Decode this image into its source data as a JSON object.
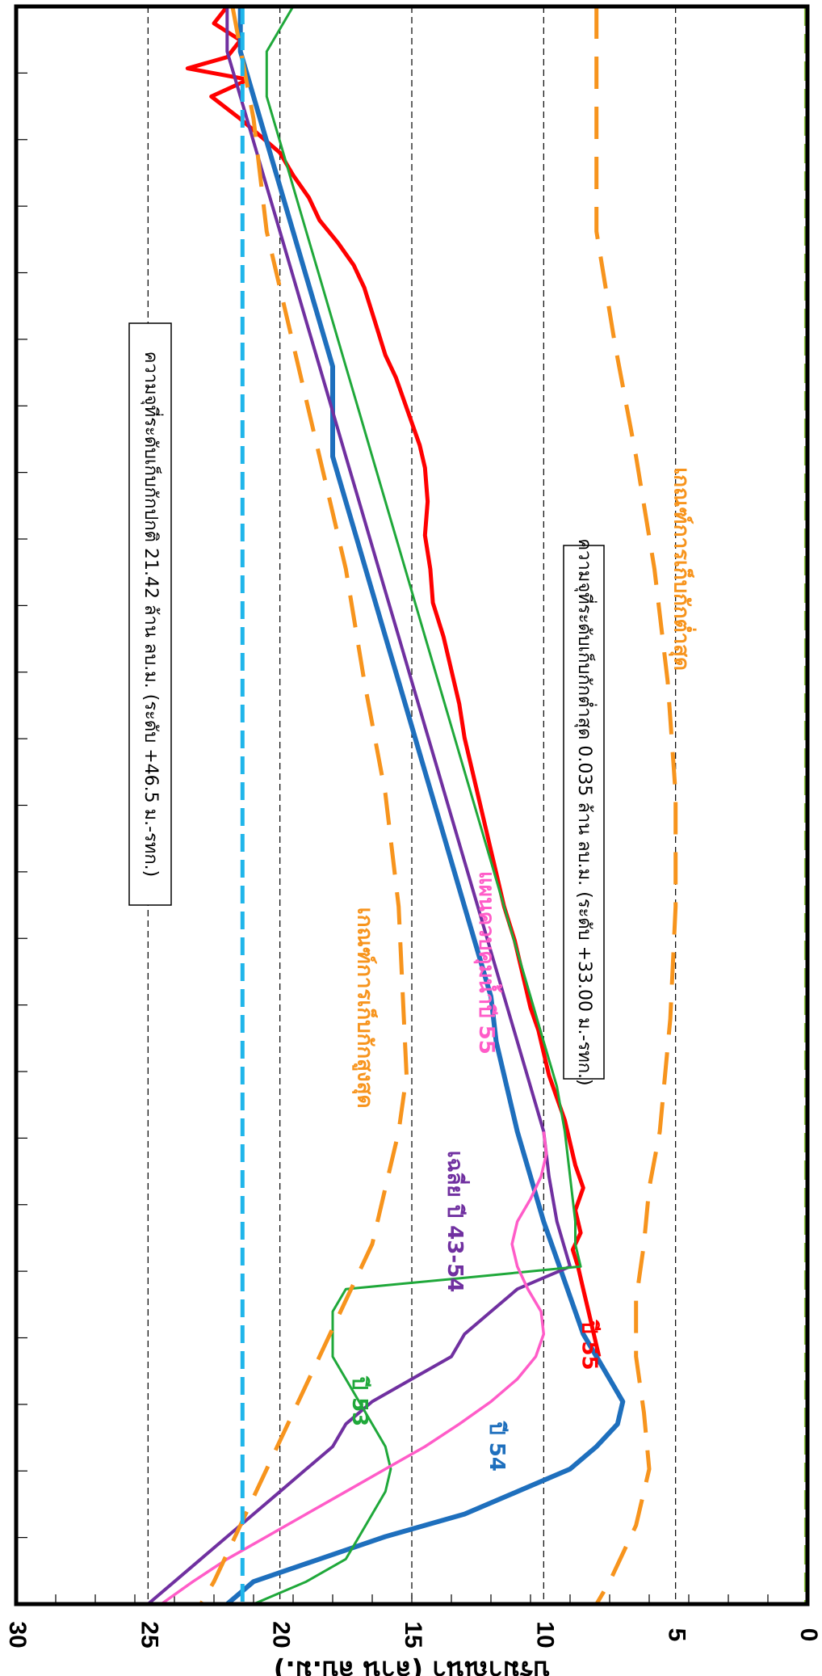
{
  "chart_data": {
    "type": "line",
    "ylabel": "ปริมาณน้ำ (ล้าน ลบ.ม.)",
    "ylim": [
      0,
      30
    ],
    "yticks": [
      0,
      5,
      10,
      15,
      20,
      25,
      30
    ],
    "grid": true,
    "x_ticks_count": 24,
    "normal_storage_label": "ความจุที่ระดับเก็บกักปกติ 21.42 ล้าน ลบ.ม. (ระดับ +46.5 ม.-รทก.)",
    "min_storage_label": "ความจุที่ระดับเก็บกักต่ำสุด 0.035 ล้าน ลบ.ม. (ระดับ +33.00 ม.-รทก.)",
    "series": [
      {
        "name": "ปี 55",
        "color": "#ff0000",
        "width": 5,
        "x": [
          0,
          1.5,
          3,
          4.5,
          5.5,
          6.5,
          8,
          10,
          13,
          15,
          17,
          19,
          21,
          23,
          25,
          28,
          31,
          33,
          35,
          37,
          39,
          41,
          44,
          47,
          50,
          53,
          56,
          59,
          62,
          65,
          68,
          71,
          74,
          77,
          80,
          83,
          86,
          89,
          91,
          93,
          95,
          97,
          99,
          101,
          103,
          105,
          107,
          109,
          110.5,
          112,
          114,
          116,
          118,
          120
        ],
        "values": [
          22,
          22.5,
          21.5,
          22,
          23.5,
          21.2,
          22.6,
          21.5,
          20,
          19.5,
          18.9,
          18.5,
          17.8,
          17.2,
          16.8,
          16.4,
          16,
          15.6,
          15.3,
          15,
          14.7,
          14.5,
          14.4,
          14.5,
          14.3,
          14.2,
          13.8,
          13.5,
          13.2,
          13,
          12.7,
          12.4,
          12.1,
          11.8,
          11.5,
          11.1,
          10.8,
          10.5,
          10.2,
          10,
          9.8,
          9.5,
          9.2,
          9,
          8.8,
          8.5,
          8.8,
          8.6,
          8.9,
          8.7,
          8.5,
          8.3,
          8.1,
          7.9
        ]
      },
      {
        "name": "ปี 54",
        "color": "#1e6fbd",
        "width": 6,
        "x": [
          0,
          4,
          8,
          12,
          16,
          20,
          24,
          28,
          32,
          36,
          40,
          44,
          48,
          52,
          56,
          60,
          64,
          68,
          72,
          76,
          80,
          84,
          88,
          92,
          96,
          100,
          104,
          108,
          112,
          116,
          118,
          120,
          122,
          124,
          126,
          128,
          130,
          132,
          134,
          136,
          138,
          140,
          142
        ],
        "values": [
          21.5,
          21.5,
          21,
          20.5,
          20,
          19.5,
          19,
          18.5,
          18,
          18,
          18,
          17.5,
          17,
          16.5,
          16,
          15.5,
          15,
          14.5,
          14,
          13.5,
          13,
          12.5,
          12,
          11.8,
          11.4,
          11,
          10.5,
          10,
          9.4,
          8.8,
          8.5,
          8,
          7.5,
          7,
          7.2,
          8,
          9,
          11,
          13,
          16,
          18.5,
          21,
          22
        ]
      },
      {
        "name": "เฉลี่ย ปี 43-54",
        "color": "#7030a0",
        "width": 4,
        "x": [
          0,
          4,
          8,
          12,
          16,
          20,
          24,
          28,
          32,
          36,
          40,
          44,
          48,
          52,
          56,
          60,
          64,
          68,
          72,
          76,
          80,
          84,
          88,
          92,
          96,
          100,
          104,
          108,
          112,
          113,
          114,
          116,
          118,
          120,
          122,
          124,
          126,
          128,
          130,
          132,
          134,
          136,
          138,
          140,
          142
        ],
        "values": [
          22,
          22,
          21.5,
          21,
          20.5,
          20,
          19.5,
          19,
          18.5,
          18,
          17.5,
          17,
          16.5,
          16,
          15.5,
          15,
          14.5,
          14,
          13.5,
          13,
          12.5,
          12,
          11.5,
          11,
          10.5,
          10,
          9.8,
          9.5,
          9,
          10,
          11,
          12,
          13,
          13.5,
          15,
          16.5,
          17.5,
          18,
          19,
          20,
          21,
          22,
          23,
          24,
          25
        ]
      },
      {
        "name": "ปี 53",
        "color": "#1fa83a",
        "width": 3,
        "x": [
          0,
          4,
          8,
          12,
          16,
          20,
          24,
          28,
          32,
          36,
          40,
          44,
          48,
          52,
          56,
          60,
          64,
          68,
          72,
          76,
          80,
          84,
          88,
          92,
          96,
          100,
          104,
          108,
          110,
          112,
          113,
          114,
          116,
          118,
          120,
          122,
          124,
          126,
          128,
          130,
          132,
          134,
          136,
          138,
          140,
          142
        ],
        "values": [
          19.5,
          20.5,
          20.5,
          20,
          19.5,
          19,
          18.5,
          18,
          17.5,
          17,
          16.5,
          16,
          15.5,
          15,
          14.5,
          14,
          13.5,
          13,
          12.5,
          12,
          11.5,
          11,
          10.5,
          10,
          9.5,
          9.2,
          9,
          8.8,
          8.8,
          8.6,
          13,
          17.5,
          18,
          18,
          18,
          17.5,
          17,
          16.5,
          16,
          15.8,
          16,
          16.5,
          17,
          17.5,
          19,
          21
        ]
      },
      {
        "name": "แผนควบคุมน้ำปี 55",
        "color": "#ff5cc8",
        "width": 3.5,
        "x": [
          100,
          102,
          104,
          106,
          108,
          110,
          112,
          114,
          116,
          118,
          120,
          122,
          124,
          126,
          128,
          130,
          132,
          134,
          136,
          138,
          140,
          142
        ],
        "values": [
          10,
          9.9,
          10.1,
          10.5,
          11,
          11.2,
          11,
          10.6,
          10.1,
          10,
          10.3,
          11,
          12,
          13.2,
          14.5,
          16,
          17.5,
          19,
          20.5,
          22,
          23.3,
          24.5
        ]
      },
      {
        "name": "เกณฑ์การเก็บกักสูงสุด",
        "color": "#f7941d",
        "width": 5,
        "dash": "40 22",
        "x": [
          0,
          10,
          20,
          30,
          40,
          50,
          60,
          70,
          80,
          90,
          95,
          100,
          105,
          110,
          115,
          120,
          125,
          130,
          135,
          140,
          142
        ],
        "values": [
          21.8,
          21,
          20.5,
          19.5,
          18.5,
          17.5,
          16.8,
          16,
          15.5,
          15.3,
          15.2,
          15.5,
          16,
          16.5,
          17.5,
          18.5,
          19.5,
          20.5,
          21.5,
          22.5,
          23
        ]
      },
      {
        "name": "เกณฑ์การเก็บกักต่ำสุด",
        "color": "#f7941d",
        "width": 5,
        "dash": "40 22",
        "x": [
          0,
          10,
          20,
          30,
          40,
          50,
          60,
          70,
          80,
          90,
          100,
          105,
          110,
          115,
          120,
          125,
          130,
          135,
          140,
          142
        ],
        "values": [
          8,
          8,
          8,
          7.3,
          6.5,
          5.8,
          5.3,
          5,
          5,
          5.2,
          5.6,
          6,
          6.2,
          6.5,
          6.5,
          6.2,
          6,
          6.5,
          7.5,
          8
        ]
      },
      {
        "name": "ระดับเก็บกักปกติ",
        "color": "#1fb5ea",
        "width": 5,
        "dash": "22 10",
        "x": [
          0,
          142
        ],
        "values": [
          21.42,
          21.42
        ]
      },
      {
        "name": "ระดับเก็บกักต่ำสุด",
        "color": "#8dc63f",
        "width": 6,
        "dash": "24 10",
        "x": [
          0,
          142
        ],
        "values": [
          0.035,
          0.035
        ]
      }
    ],
    "labels": [
      {
        "text": "ปี 55",
        "color": "#ff0000",
        "at": [
          119,
          8.3
        ]
      },
      {
        "text": "ปี 54",
        "color": "#1e6fbd",
        "at": [
          128,
          11.8
        ]
      },
      {
        "text": "ปี 53",
        "color": "#1fa83a",
        "at": [
          124,
          17.0
        ]
      },
      {
        "text": "เฉลี่ย ปี 43-54",
        "color": "#7030a0",
        "at": [
          108,
          13.4
        ]
      },
      {
        "text": "แผนควบคุมน้ำปี 55",
        "color": "#ff5cc8",
        "at": [
          85,
          12.2
        ]
      },
      {
        "text": "เกณฑ์การเก็บกักสูงสุด",
        "color": "#f7941d",
        "at": [
          89,
          16.8
        ]
      },
      {
        "text": "เกณฑ์การเก็บกักต่ำสุด",
        "color": "#f7941d",
        "at": [
          50,
          4.8
        ]
      }
    ]
  }
}
